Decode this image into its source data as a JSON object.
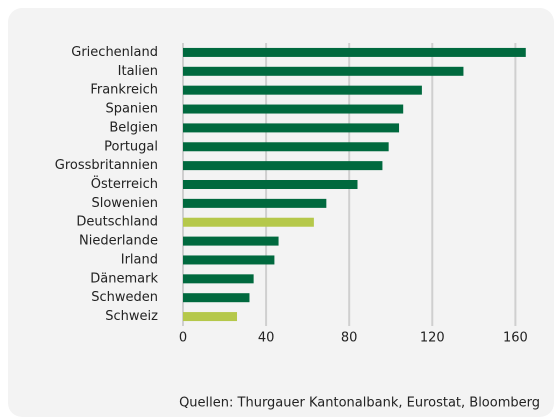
{
  "chart_data": {
    "type": "bar",
    "orientation": "horizontal",
    "categories": [
      "Griechenland",
      "Italien",
      "Frankreich",
      "Spanien",
      "Belgien",
      "Portugal",
      "Grossbritannien",
      "Österreich",
      "Slowenien",
      "Deutschland",
      "Niederlande",
      "Irland",
      "Dänemark",
      "Schweden",
      "Schweiz"
    ],
    "values": [
      165,
      135,
      115,
      106,
      104,
      99,
      96,
      84,
      69,
      63,
      46,
      44,
      34,
      32,
      26
    ],
    "colors": [
      "#00693e",
      "#00693e",
      "#00693e",
      "#00693e",
      "#00693e",
      "#00693e",
      "#00693e",
      "#00693e",
      "#00693e",
      "#b5c84a",
      "#00693e",
      "#00693e",
      "#00693e",
      "#00693e",
      "#b5c84a"
    ],
    "xlim": [
      0,
      168
    ],
    "xticks": [
      0,
      40,
      80,
      120,
      160
    ],
    "grid": true,
    "source": "Quellen: Thurgauer Kantonalbank, Eurostat, Bloomberg"
  }
}
